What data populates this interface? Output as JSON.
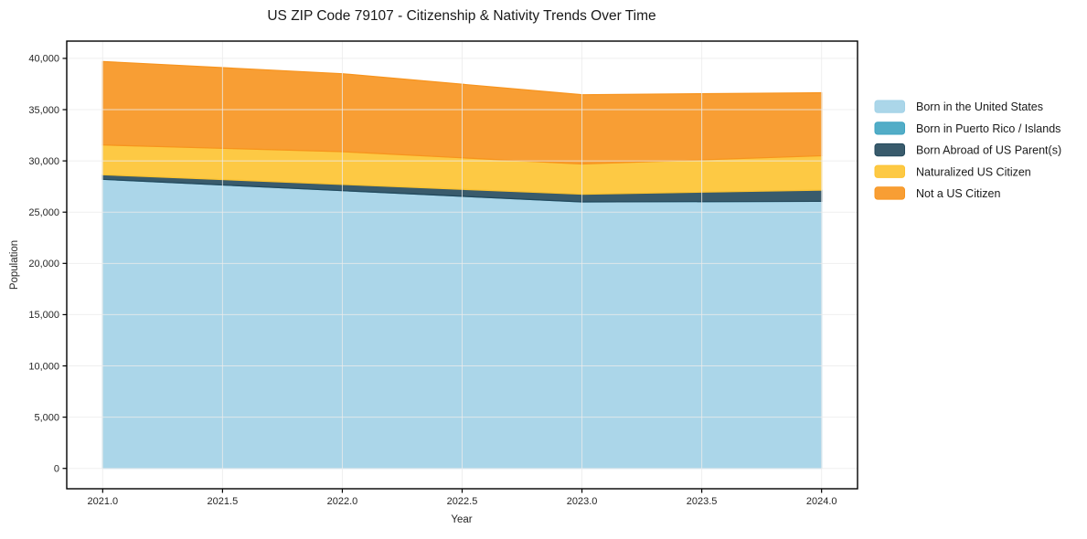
{
  "chart_data": {
    "type": "area",
    "stacked": true,
    "title": "US ZIP Code 79107 - Citizenship & Nativity Trends Over Time",
    "xlabel": "Year",
    "ylabel": "Population",
    "x": [
      2021,
      2022,
      2023,
      2024
    ],
    "series": [
      {
        "name": "Born in the United States",
        "color": "#a2d2e7",
        "values": [
          28200,
          27100,
          26000,
          26050
        ]
      },
      {
        "name": "Born in Puerto Rico / Islands",
        "color": "#3fa4c1",
        "values": [
          0,
          0,
          0,
          0
        ]
      },
      {
        "name": "Born Abroad of US Parent(s)",
        "color": "#24495c",
        "values": [
          450,
          600,
          750,
          1100
        ]
      },
      {
        "name": "Naturalized US Citizen",
        "color": "#fdc330",
        "values": [
          2900,
          3200,
          2950,
          3350
        ]
      },
      {
        "name": "Not a US Citizen",
        "color": "#f7941e",
        "values": [
          8150,
          7600,
          6750,
          6150
        ]
      }
    ],
    "xlim": [
      2020.85,
      2024.15
    ],
    "ylim": [
      -1985,
      41685
    ],
    "xticks": {
      "values": [
        2021.0,
        2021.5,
        2022.0,
        2022.5,
        2023.0,
        2023.5,
        2024.0
      ],
      "labels": [
        "2021.0",
        "2021.5",
        "2022.0",
        "2022.5",
        "2023.0",
        "2023.5",
        "2024.0"
      ]
    },
    "yticks": {
      "values": [
        0,
        5000,
        10000,
        15000,
        20000,
        25000,
        30000,
        35000,
        40000
      ],
      "labels": [
        "0",
        "5,000",
        "10,000",
        "15,000",
        "20,000",
        "25,000",
        "30,000",
        "35,000",
        "40,000"
      ]
    },
    "grid": true,
    "grid_color": "#ebebeb",
    "legend_position": "right",
    "fill_opacity": 0.9
  }
}
